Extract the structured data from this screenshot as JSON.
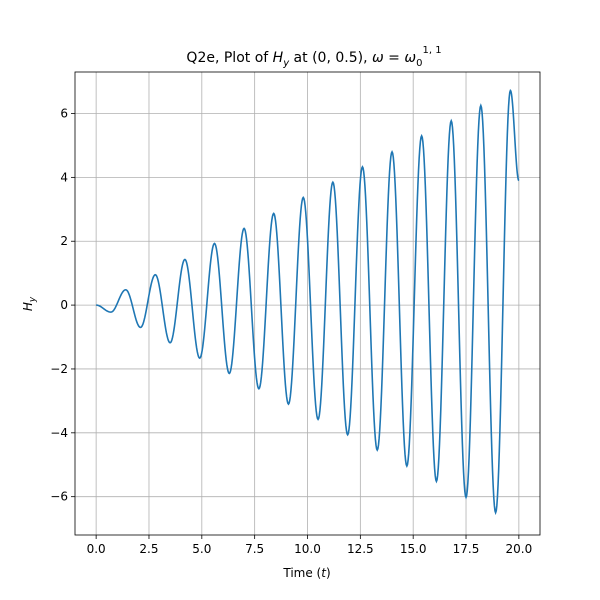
{
  "chart_data": {
    "type": "line",
    "title": "Q2e, Plot of H_y at (0, 0.5), ω = ω₀^{1,1}",
    "title_parts": {
      "prefix": "Q2e, Plot of ",
      "h": "H",
      "h_sub": "y",
      "mid": " at (0, 0.5), ",
      "omega": "ω",
      "eq": " = ",
      "omega0": "ω",
      "omega0_sub": "0",
      "omega0_sup": "1, 1"
    },
    "xlabel": "Time (t)",
    "xlabel_parts": {
      "text": "Time (",
      "var": "t",
      "close": ")"
    },
    "ylabel": "H_y",
    "ylabel_parts": {
      "h": "H",
      "sub": "y"
    },
    "xlim": [
      -1.0,
      21.0
    ],
    "ylim": [
      -7.2,
      7.3
    ],
    "xticks": [
      0.0,
      2.5,
      5.0,
      7.5,
      10.0,
      12.5,
      15.0,
      17.5,
      20.0
    ],
    "xtick_labels": [
      "0.0",
      "2.5",
      "5.0",
      "7.5",
      "10.0",
      "12.5",
      "15.0",
      "17.5",
      "20.0"
    ],
    "yticks": [
      -6,
      -4,
      -2,
      0,
      2,
      4,
      6
    ],
    "ytick_labels": [
      "−6",
      "−4",
      "−2",
      "0",
      "2",
      "4",
      "6"
    ],
    "grid": true,
    "series": [
      {
        "color": "#1f77b4",
        "x_range": [
          0,
          20
        ],
        "extrema": [
          [
            0.0,
            0.0
          ],
          [
            0.7,
            -0.22
          ],
          [
            1.4,
            0.48
          ],
          [
            2.1,
            -0.7
          ],
          [
            2.8,
            0.95
          ],
          [
            3.5,
            -1.18
          ],
          [
            4.2,
            1.43
          ],
          [
            4.9,
            -1.66
          ],
          [
            5.6,
            1.93
          ],
          [
            6.3,
            -2.14
          ],
          [
            7.0,
            2.4
          ],
          [
            7.7,
            -2.62
          ],
          [
            8.4,
            2.87
          ],
          [
            9.1,
            -3.1
          ],
          [
            9.8,
            3.37
          ],
          [
            10.5,
            -3.58
          ],
          [
            11.2,
            3.85
          ],
          [
            11.9,
            -4.06
          ],
          [
            12.6,
            4.33
          ],
          [
            13.3,
            -4.54
          ],
          [
            14.0,
            4.8
          ],
          [
            14.7,
            -5.04
          ],
          [
            15.4,
            5.3
          ],
          [
            16.1,
            -5.52
          ],
          [
            16.8,
            5.77
          ],
          [
            17.5,
            -6.02
          ],
          [
            18.2,
            6.25
          ],
          [
            18.9,
            -6.5
          ],
          [
            19.6,
            6.72
          ],
          [
            20.0,
            3.9
          ]
        ]
      }
    ]
  }
}
